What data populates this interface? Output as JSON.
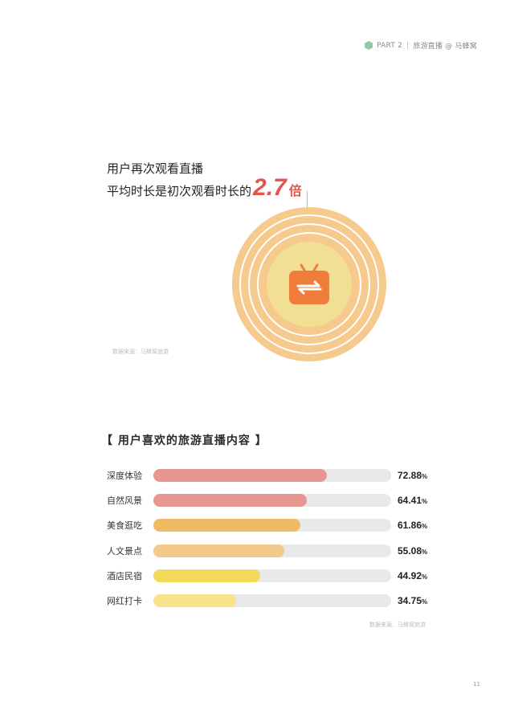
{
  "header": {
    "part": "PART 2",
    "separator": "|",
    "section": "旅游直播 @ 马蜂窝"
  },
  "headline": {
    "line1": "用户再次观看直播",
    "line2_prefix": "平均时长是初次观看时长的",
    "highlight_value": "2.7",
    "highlight_unit": "倍"
  },
  "colors": {
    "accent_red": "#e2574c",
    "ring_orange": "#f6c98c",
    "core_yellow": "#f1e094",
    "tv_icon": "#f07e3a",
    "track": "#e9e9e9",
    "header_hex": "#8fc9a8"
  },
  "icon": {
    "center": "tv-repeat-icon"
  },
  "source_top": "数据来源：马蜂窝旅游",
  "section_title": "【 用户喜欢的旅游直播内容 】",
  "chart_data": {
    "type": "bar",
    "orientation": "horizontal",
    "categories": [
      "深度体验",
      "自然风景",
      "美食逛吃",
      "人文景点",
      "酒店民宿",
      "网红打卡"
    ],
    "values": [
      72.88,
      64.41,
      61.86,
      55.08,
      44.92,
      34.75
    ],
    "value_labels": [
      "72.88",
      "64.41",
      "61.86",
      "55.08",
      "44.92",
      "34.75"
    ],
    "unit": "%",
    "xlim": [
      0,
      100
    ],
    "colors": [
      "#e59790",
      "#e59790",
      "#efbb62",
      "#f3c98c",
      "#f3da5a",
      "#f6e38a"
    ]
  },
  "source_bottom": "数据来源：马蜂窝旅游",
  "page_number": "11"
}
